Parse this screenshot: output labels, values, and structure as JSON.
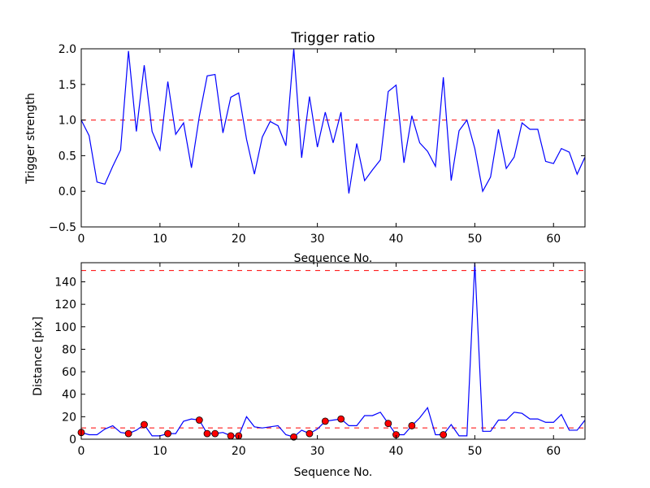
{
  "chart_data": [
    {
      "type": "line",
      "title": "Trigger ratio",
      "xlabel": "Sequence No.",
      "ylabel": "Trigger strength",
      "xlim": [
        0,
        64
      ],
      "ylim": [
        -0.5,
        2.0
      ],
      "xticks": [
        0,
        10,
        20,
        30,
        40,
        50,
        60
      ],
      "xtick_labels": [
        "0",
        "10",
        "20",
        "30",
        "40",
        "50",
        "60"
      ],
      "yticks": [
        -0.5,
        0.0,
        0.5,
        1.0,
        1.5,
        2.0
      ],
      "ytick_labels": [
        "−0.5",
        "0.0",
        "0.5",
        "1.0",
        "1.5",
        "2.0"
      ],
      "grid": false,
      "series": [
        {
          "color": "#0000ff",
          "x": [
            0,
            1,
            2,
            3,
            4,
            5,
            6,
            7,
            8,
            9,
            10,
            11,
            12,
            13,
            14,
            15,
            16,
            17,
            18,
            19,
            20,
            21,
            22,
            23,
            24,
            25,
            26,
            27,
            28,
            29,
            30,
            31,
            32,
            33,
            34,
            35,
            36,
            37,
            38,
            39,
            40,
            41,
            42,
            43,
            44,
            45,
            46,
            47,
            48,
            49,
            50,
            51,
            52,
            53,
            54,
            55,
            56,
            57,
            58,
            59,
            60,
            61,
            62,
            63,
            64
          ],
          "y": [
            1.0,
            0.78,
            0.13,
            0.1,
            0.35,
            0.58,
            1.97,
            0.84,
            1.77,
            0.84,
            0.58,
            1.54,
            0.8,
            0.96,
            0.33,
            1.05,
            1.62,
            1.64,
            0.82,
            1.32,
            1.38,
            0.73,
            0.24,
            0.76,
            0.98,
            0.92,
            0.64,
            2.0,
            0.47,
            1.33,
            0.62,
            1.11,
            0.68,
            1.11,
            -0.03,
            0.67,
            0.15,
            0.3,
            0.44,
            1.4,
            1.49,
            0.4,
            1.06,
            0.68,
            0.56,
            0.35,
            1.6,
            0.15,
            0.85,
            1.0,
            0.6,
            0.0,
            0.2,
            0.87,
            0.32,
            0.48,
            0.96,
            0.87,
            0.87,
            0.42,
            0.39,
            0.6,
            0.55,
            0.24,
            0.48
          ]
        }
      ],
      "reference_lines": [
        {
          "y": 1.0,
          "color": "#ff0000",
          "style": "dashed"
        }
      ]
    },
    {
      "type": "line",
      "title": "",
      "xlabel": "Sequence No.",
      "ylabel": "Distance [pix]",
      "xlim": [
        0,
        64
      ],
      "ylim": [
        0,
        157
      ],
      "xticks": [
        0,
        10,
        20,
        30,
        40,
        50,
        60
      ],
      "xtick_labels": [
        "0",
        "10",
        "20",
        "30",
        "40",
        "50",
        "60"
      ],
      "yticks": [
        0,
        20,
        40,
        60,
        80,
        100,
        120,
        140
      ],
      "ytick_labels": [
        "0",
        "20",
        "40",
        "60",
        "80",
        "100",
        "120",
        "140"
      ],
      "grid": false,
      "series": [
        {
          "color": "#0000ff",
          "x": [
            0,
            1,
            2,
            3,
            4,
            5,
            6,
            7,
            8,
            9,
            10,
            11,
            12,
            13,
            14,
            15,
            16,
            17,
            18,
            19,
            20,
            21,
            22,
            23,
            24,
            25,
            26,
            27,
            28,
            29,
            30,
            31,
            32,
            33,
            34,
            35,
            36,
            37,
            38,
            39,
            40,
            41,
            42,
            43,
            44,
            45,
            46,
            47,
            48,
            49,
            50,
            51,
            52,
            53,
            54,
            55,
            56,
            57,
            58,
            59,
            60,
            61,
            62,
            63,
            64
          ],
          "y": [
            6,
            4,
            4,
            9,
            12,
            6,
            5,
            8,
            13,
            3,
            3,
            5,
            5,
            16,
            18,
            17,
            5,
            5,
            6,
            3,
            3,
            20,
            11,
            10,
            11,
            12,
            4,
            2,
            8,
            5,
            9,
            16,
            17,
            18,
            12,
            12,
            21,
            21,
            24,
            14,
            4,
            4,
            12,
            19,
            28,
            4,
            4,
            13,
            3,
            3,
            157,
            7,
            7,
            17,
            17,
            24,
            23,
            18,
            18,
            15,
            15,
            22,
            8,
            8,
            17
          ]
        }
      ],
      "markers": {
        "color": "#ff0000",
        "edge_color": "#000000",
        "x": [
          0,
          6,
          8,
          11,
          15,
          16,
          17,
          19,
          20,
          27,
          29,
          31,
          33,
          39,
          40,
          42,
          46
        ],
        "y": [
          6,
          5,
          13,
          5,
          17,
          5,
          5,
          3,
          3,
          2,
          5,
          16,
          18,
          14,
          4,
          12,
          4
        ]
      },
      "reference_lines": [
        {
          "y": 150,
          "color": "#ff0000",
          "style": "dashed"
        },
        {
          "y": 10,
          "color": "#ff0000",
          "style": "dashed"
        }
      ]
    }
  ]
}
